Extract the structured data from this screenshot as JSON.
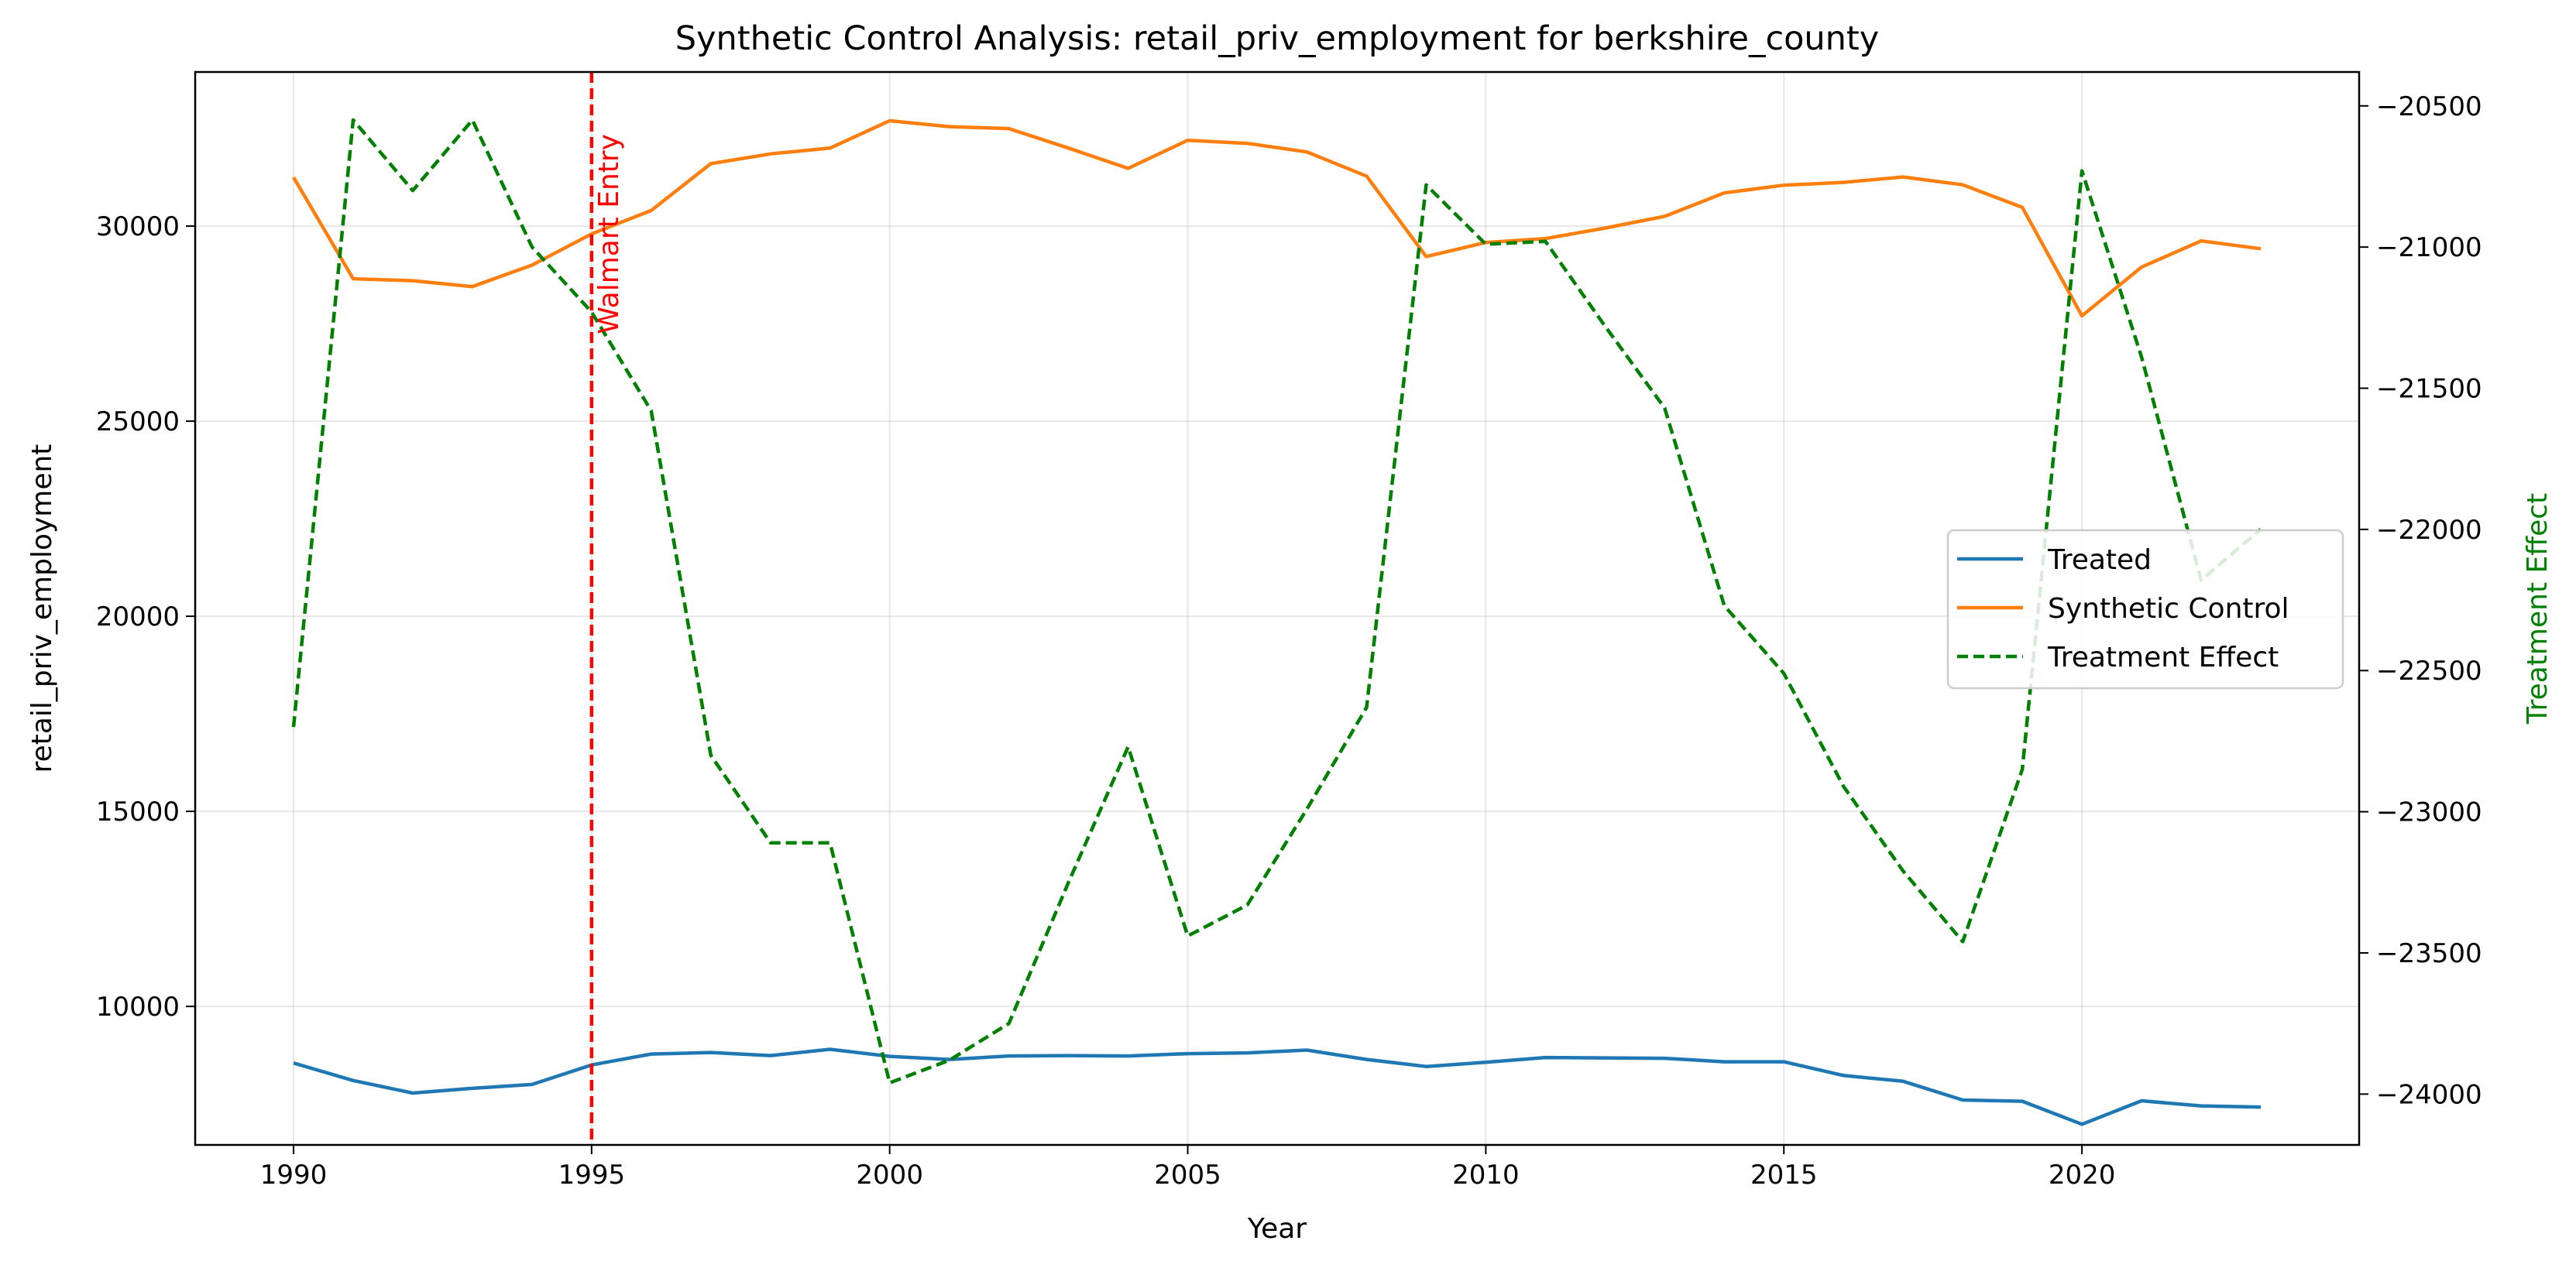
{
  "chart_data": {
    "type": "line",
    "title": "Synthetic Control Analysis: retail_priv_employment for berkshire_county",
    "xlabel": "Year",
    "ylabel": "retail_priv_employment",
    "y2label": "Treatment Effect",
    "xlim": [
      1988.35,
      2024.65
    ],
    "ylim": [
      6450,
      33950
    ],
    "y2lim": [
      -24180,
      -20380
    ],
    "x_ticks": [
      1990,
      1995,
      2000,
      2005,
      2010,
      2015,
      2020
    ],
    "y_ticks": [
      10000,
      15000,
      20000,
      25000,
      30000
    ],
    "y2_ticks": [
      -20500,
      -21000,
      -21500,
      -22000,
      -22500,
      -23000,
      -23500,
      -24000
    ],
    "grid": true,
    "legend_position": "center-right",
    "x": [
      1990,
      1991,
      1992,
      1993,
      1994,
      1995,
      1996,
      1997,
      1998,
      1999,
      2000,
      2001,
      2002,
      2003,
      2004,
      2005,
      2006,
      2007,
      2008,
      2009,
      2010,
      2011,
      2012,
      2013,
      2014,
      2015,
      2016,
      2017,
      2018,
      2019,
      2020,
      2021,
      2022,
      2023
    ],
    "series": [
      {
        "name": "Treated",
        "axis": "left",
        "color": "#1f77b4",
        "dash": "solid",
        "values": [
          8550,
          8100,
          7780,
          7900,
          8000,
          8500,
          8780,
          8820,
          8740,
          8900,
          8720,
          8640,
          8730,
          8740,
          8730,
          8790,
          8810,
          8880,
          8640,
          8460,
          8570,
          8690,
          8680,
          8670,
          8580,
          8580,
          8230,
          8080,
          7600,
          7570,
          6980,
          7580,
          7450,
          7420
        ]
      },
      {
        "name": "Synthetic Control",
        "axis": "left",
        "color": "#ff7f0e",
        "dash": "solid",
        "values": [
          31250,
          28650,
          28600,
          28450,
          29000,
          29800,
          30400,
          31600,
          31850,
          32000,
          32700,
          32550,
          32500,
          32000,
          31480,
          32200,
          32120,
          31900,
          31280,
          29220,
          29580,
          29680,
          29950,
          30250,
          30850,
          31050,
          31120,
          31260,
          31060,
          30480,
          27700,
          28950,
          29620,
          29420
        ]
      },
      {
        "name": "Treatment Effect",
        "axis": "right",
        "color": "#008000",
        "dash": "dashed",
        "values": [
          -22700,
          -20550,
          -20800,
          -20550,
          -21000,
          -21230,
          -21580,
          -22800,
          -23110,
          -23110,
          -23960,
          -23880,
          -23750,
          -23250,
          -22770,
          -23440,
          -23330,
          -22990,
          -22630,
          -20780,
          -20990,
          -20980,
          -21280,
          -21570,
          -22270,
          -22510,
          -22910,
          -23210,
          -23460,
          -22850,
          -20730,
          -21390,
          -22180,
          -22000
        ]
      }
    ],
    "annotations": [
      {
        "label": "Walmart Entry",
        "x": 1995,
        "color": "#ff0000",
        "style": "dashed-vertical-line"
      }
    ]
  }
}
